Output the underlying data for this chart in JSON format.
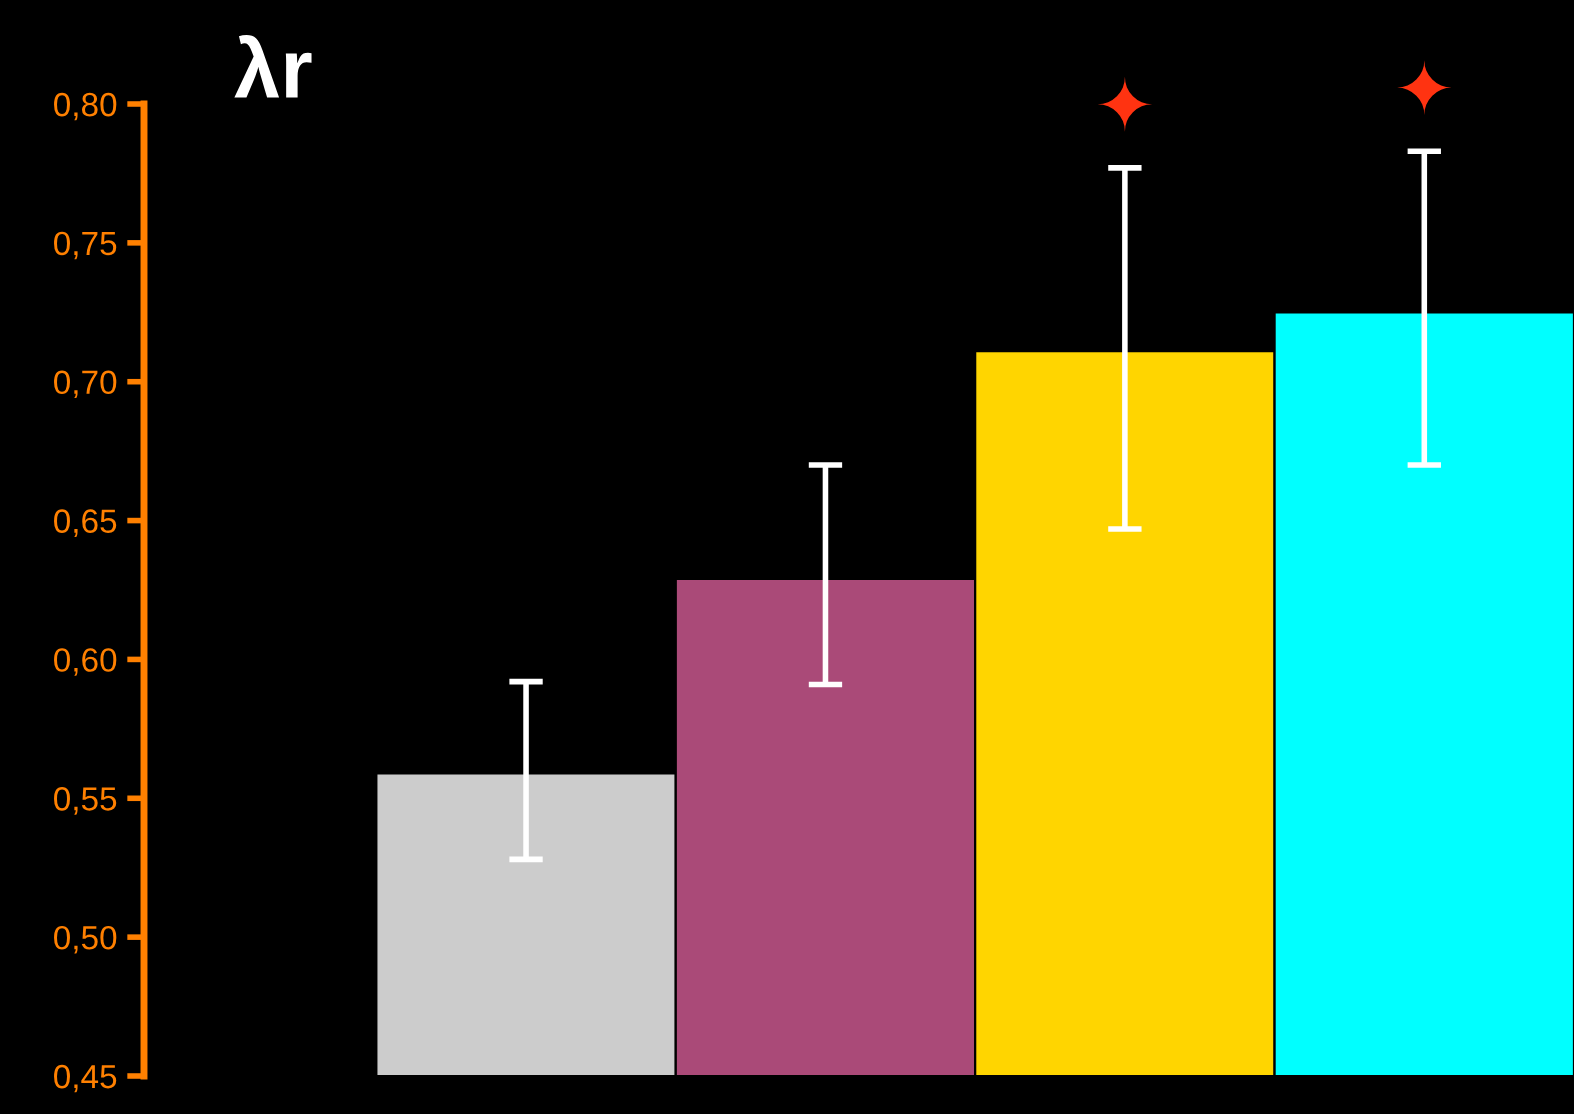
{
  "chart_data": {
    "type": "bar",
    "title": "λr",
    "categories": [
      null,
      null,
      null,
      null
    ],
    "values": [
      0.559,
      0.629,
      0.711,
      0.725
    ],
    "colors": [
      "#cccccc",
      "#aa4a78",
      "#ffd500",
      "#00ffff"
    ],
    "errors": [
      [
        0.528,
        0.592
      ],
      [
        0.591,
        0.67
      ],
      [
        0.647,
        0.777
      ],
      [
        0.67,
        0.783
      ]
    ],
    "value_labels": [
      null,
      null,
      "✦",
      "✦"
    ],
    "ylim": [
      0.45,
      0.8
    ],
    "yticks": [
      {
        "value": 0.45,
        "label": "0,45"
      },
      {
        "value": 0.5,
        "label": "0,50"
      },
      {
        "value": 0.55,
        "label": "0,55"
      },
      {
        "value": 0.6,
        "label": "0,60"
      },
      {
        "value": 0.65,
        "label": "0,65"
      },
      {
        "value": 0.7,
        "label": "0,70"
      },
      {
        "value": 0.75,
        "label": "0,75"
      },
      {
        "value": 0.8,
        "label": "0,80"
      }
    ],
    "tick_labels": "y",
    "grid": false,
    "legend": false
  }
}
